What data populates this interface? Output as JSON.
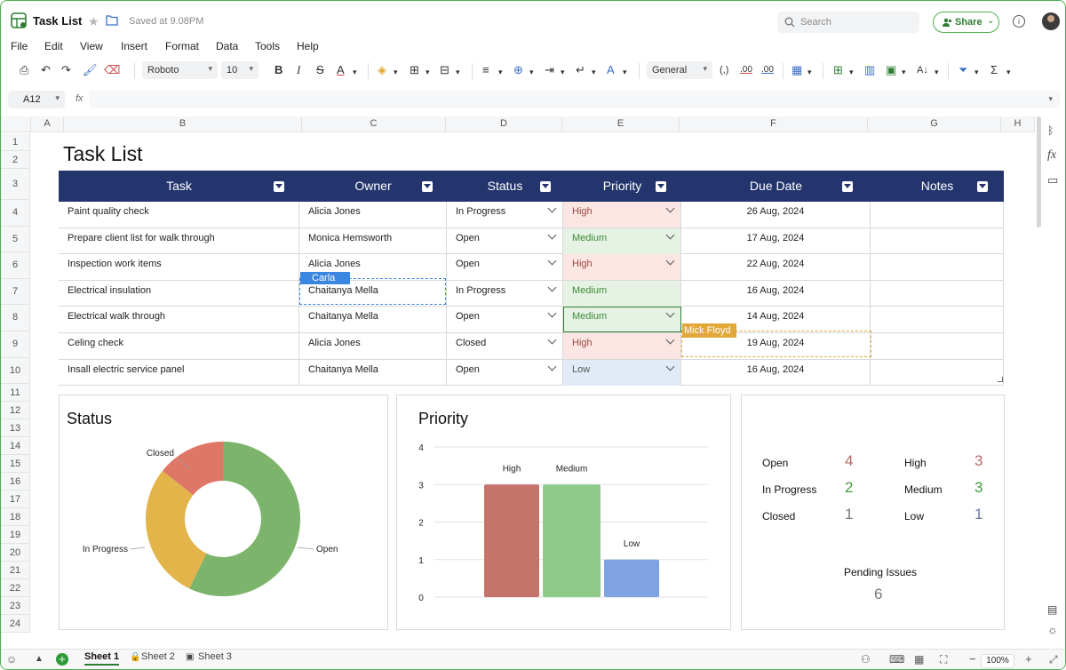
{
  "app": {
    "title": "Task List",
    "saved": "Saved at 9.08PM",
    "search_placeholder": "Search",
    "share_label": "Share"
  },
  "menu": [
    "File",
    "Edit",
    "View",
    "Insert",
    "Format",
    "Data",
    "Tools",
    "Help"
  ],
  "toolbar": {
    "font_family": "Roboto",
    "font_size": "10",
    "number_format": "General"
  },
  "formula_bar": {
    "cell_ref": "A12",
    "fx_label": "fx",
    "value": ""
  },
  "columns": [
    "A",
    "B",
    "C",
    "D",
    "E",
    "F",
    "G",
    "H"
  ],
  "rows": [
    "1",
    "2",
    "3",
    "4",
    "5",
    "6",
    "7",
    "8",
    "9",
    "10",
    "11",
    "12",
    "13",
    "14",
    "15",
    "16",
    "17",
    "18",
    "19",
    "20",
    "21",
    "22",
    "23",
    "24"
  ],
  "sheet_title": "Task List",
  "table": {
    "headers": [
      "Task",
      "Owner",
      "Status",
      "Priority",
      "Due Date",
      "Notes"
    ],
    "rows": [
      {
        "task": "Paint quality check",
        "owner": "Alicia Jones",
        "status": "In Progress",
        "priority": "High",
        "due": "26 Aug, 2024",
        "notes": ""
      },
      {
        "task": "Prepare client list for walk through",
        "owner": "Monica Hemsworth",
        "status": "Open",
        "priority": "Medium",
        "due": "17 Aug, 2024",
        "notes": ""
      },
      {
        "task": "Inspection work items",
        "owner": "Alicia Jones",
        "status": "Open",
        "priority": "High",
        "due": "22 Aug, 2024",
        "notes": ""
      },
      {
        "task": "Electrical insulation",
        "owner": "Chaitanya Mella",
        "status": "In Progress",
        "priority": "Medium",
        "due": "16 Aug, 2024",
        "notes": ""
      },
      {
        "task": "Electrical walk through",
        "owner": "Chaitanya Mella",
        "status": "Open",
        "priority": "Medium",
        "due": "14 Aug, 2024",
        "notes": ""
      },
      {
        "task": "Celing check",
        "owner": "Alicia Jones",
        "status": "Closed",
        "priority": "High",
        "due": "19 Aug, 2024",
        "notes": ""
      },
      {
        "task": "Insall electric service panel",
        "owner": "Chaitanya Mella",
        "status": "Open",
        "priority": "Low",
        "due": "16 Aug, 2024",
        "notes": ""
      }
    ]
  },
  "collaborators": [
    {
      "name": "Carla",
      "color": "#3b86e0"
    },
    {
      "name": "Mick Floyd",
      "color": "#e2a93a"
    }
  ],
  "status_panel": {
    "title": "Status"
  },
  "priority_panel": {
    "title": "Priority"
  },
  "chart_data": [
    {
      "type": "pie",
      "title": "Status",
      "donut": true,
      "categories": [
        "Open",
        "In Progress",
        "Closed"
      ],
      "values": [
        4,
        2,
        1
      ],
      "colors": [
        "#7db46c",
        "#e2b44a",
        "#df7766"
      ]
    },
    {
      "type": "bar",
      "title": "Priority",
      "categories": [
        "High",
        "Medium",
        "Low"
      ],
      "values": [
        3,
        3,
        1
      ],
      "colors": [
        "#c6736c",
        "#8ecb89",
        "#7fa3e0"
      ],
      "ylim": [
        0,
        4
      ],
      "yticks": [
        "0",
        "1",
        "2",
        "3",
        "4"
      ],
      "grid": true
    }
  ],
  "summary": {
    "status": [
      {
        "label": "Open",
        "value": "4",
        "color": "#b36a62"
      },
      {
        "label": "In Progress",
        "value": "2",
        "color": "#3f9a3e"
      },
      {
        "label": "Closed",
        "value": "1",
        "color": "#777777"
      }
    ],
    "priority": [
      {
        "label": "High",
        "value": "3",
        "color": "#b36a62"
      },
      {
        "label": "Medium",
        "value": "3",
        "color": "#3f9a3e"
      },
      {
        "label": "Low",
        "value": "1",
        "color": "#6d7aa8"
      }
    ],
    "pending_label": "Pending Issues",
    "pending_value": "6"
  },
  "sheets": [
    {
      "label": "Sheet 1",
      "active": true
    },
    {
      "label": "Sheet 2",
      "active": false
    },
    {
      "label": "Sheet 3",
      "active": false
    }
  ],
  "zoom": "100%"
}
